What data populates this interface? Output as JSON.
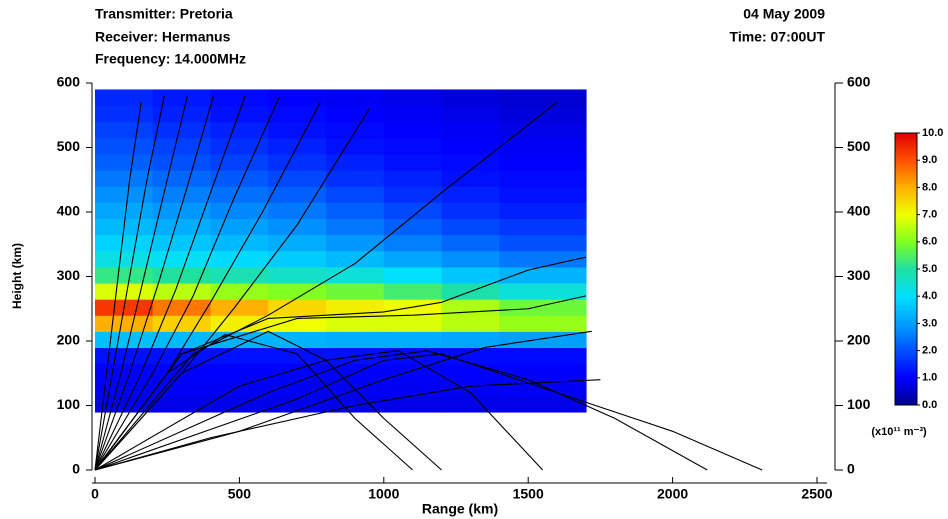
{
  "header": {
    "transmitter": "Transmitter: Pretoria",
    "receiver": "Receiver: Hermanus",
    "frequency": "Frequency: 14.000MHz",
    "date": "04 May 2009",
    "time": "Time: 07:00UT"
  },
  "chart_data": {
    "type": "heatmap",
    "xlabel": "Range (km)",
    "ylabel": "Height (km)",
    "xlim": [
      0,
      2500
    ],
    "xticks": [
      0,
      500,
      1000,
      1500,
      2000,
      2500
    ],
    "ylim": [
      0,
      600
    ],
    "yticks": [
      0,
      100,
      200,
      300,
      400,
      500,
      600
    ],
    "y2lim": [
      0,
      600
    ],
    "y2ticks": [
      0,
      100,
      200,
      300,
      400,
      500,
      600
    ],
    "xedges": [
      0,
      200,
      400,
      600,
      800,
      1000,
      1200,
      1400,
      1700
    ],
    "yedges": [
      90,
      115,
      140,
      165,
      190,
      215,
      240,
      265,
      290,
      315,
      340,
      365,
      390,
      415,
      440,
      465,
      490,
      515,
      540,
      565,
      590
    ],
    "values": [
      [
        0.8,
        0.8,
        0.8,
        0.8,
        0.8,
        0.8,
        0.8,
        0.8
      ],
      [
        0.9,
        0.9,
        0.9,
        0.9,
        0.9,
        0.9,
        0.9,
        0.9
      ],
      [
        1.0,
        1.0,
        1.0,
        1.0,
        1.0,
        1.0,
        1.0,
        1.0
      ],
      [
        1.2,
        1.2,
        1.2,
        1.2,
        1.2,
        1.1,
        1.1,
        1.1
      ],
      [
        3.5,
        3.4,
        3.3,
        3.3,
        3.2,
        3.2,
        3.1,
        3.0
      ],
      [
        8.0,
        7.6,
        7.2,
        7.0,
        6.8,
        6.8,
        6.5,
        6.2
      ],
      [
        9.3,
        8.6,
        8.0,
        7.5,
        7.2,
        7.0,
        6.4,
        5.8
      ],
      [
        6.8,
        6.5,
        6.2,
        6.0,
        5.8,
        5.4,
        4.9,
        4.4
      ],
      [
        5.2,
        5.0,
        4.8,
        4.6,
        4.4,
        4.0,
        3.6,
        3.3
      ],
      [
        4.3,
        4.1,
        3.9,
        3.7,
        3.4,
        3.1,
        2.8,
        2.5
      ],
      [
        3.8,
        3.6,
        3.4,
        3.2,
        2.9,
        2.6,
        2.3,
        2.0
      ],
      [
        3.4,
        3.2,
        3.0,
        2.8,
        2.5,
        2.2,
        1.9,
        1.7
      ],
      [
        3.1,
        2.9,
        2.7,
        2.5,
        2.2,
        1.9,
        1.6,
        1.4
      ],
      [
        2.8,
        2.6,
        2.4,
        2.2,
        1.9,
        1.6,
        1.4,
        1.2
      ],
      [
        2.5,
        2.3,
        2.1,
        1.9,
        1.6,
        1.4,
        1.2,
        1.1
      ],
      [
        2.2,
        2.0,
        1.8,
        1.6,
        1.4,
        1.2,
        1.1,
        1.0
      ],
      [
        2.0,
        1.8,
        1.6,
        1.4,
        1.2,
        1.1,
        1.0,
        0.9
      ],
      [
        1.8,
        1.6,
        1.4,
        1.2,
        1.1,
        1.0,
        0.9,
        0.8
      ],
      [
        1.6,
        1.4,
        1.2,
        1.1,
        1.0,
        0.9,
        0.8,
        0.7
      ],
      [
        1.5,
        1.3,
        1.1,
        1.0,
        0.9,
        0.8,
        0.7,
        0.6
      ]
    ],
    "clim": [
      0,
      10
    ],
    "colormap": [
      "#00008f",
      "#0000ff",
      "#0050ff",
      "#00a0ff",
      "#00e0ff",
      "#20e0a0",
      "#80ff20",
      "#f0ff00",
      "#ffb000",
      "#ff5000",
      "#e00000"
    ],
    "cticks": [
      {
        "value": 0,
        "label": "0.0"
      },
      {
        "value": 1,
        "label": "1.0"
      },
      {
        "value": 2,
        "label": "2.0"
      },
      {
        "value": 3,
        "label": "3.0"
      },
      {
        "value": 4,
        "label": "4.0"
      },
      {
        "value": 5,
        "label": "5.0"
      },
      {
        "value": 6,
        "label": "6.0"
      },
      {
        "value": 7,
        "label": "7.0"
      },
      {
        "value": 8,
        "label": "8.0"
      },
      {
        "value": 9,
        "label": "9.0"
      },
      {
        "value": 10,
        "label": "10.0"
      }
    ],
    "clabel": "(x10¹¹ m⁻³)",
    "ray_color": "#000000",
    "rays": [
      {
        "x": [
          0,
          40,
          80,
          120,
          160
        ],
        "y": [
          0,
          150,
          300,
          450,
          570
        ]
      },
      {
        "x": [
          0,
          60,
          120,
          180,
          240
        ],
        "y": [
          0,
          150,
          300,
          450,
          580
        ]
      },
      {
        "x": [
          0,
          90,
          170,
          250,
          320
        ],
        "y": [
          0,
          150,
          300,
          450,
          580
        ]
      },
      {
        "x": [
          0,
          120,
          220,
          320,
          410
        ],
        "y": [
          0,
          150,
          290,
          440,
          580
        ]
      },
      {
        "x": [
          0,
          160,
          280,
          400,
          520
        ],
        "y": [
          0,
          150,
          280,
          430,
          580
        ]
      },
      {
        "x": [
          0,
          200,
          340,
          480,
          640
        ],
        "y": [
          0,
          150,
          270,
          420,
          580
        ]
      },
      {
        "x": [
          0,
          250,
          400,
          580,
          780
        ],
        "y": [
          0,
          150,
          260,
          400,
          570
        ]
      },
      {
        "x": [
          0,
          300,
          480,
          700,
          950
        ],
        "y": [
          0,
          150,
          250,
          380,
          560
        ]
      },
      {
        "x": [
          0,
          340,
          600,
          900,
          1200,
          1600
        ],
        "y": [
          0,
          180,
          240,
          320,
          430,
          570
        ]
      },
      {
        "x": [
          0,
          300,
          600,
          1000,
          1200,
          1500,
          1700
        ],
        "y": [
          0,
          180,
          235,
          245,
          260,
          310,
          330
        ]
      },
      {
        "x": [
          0,
          300,
          700,
          1100,
          1500,
          1700
        ],
        "y": [
          0,
          180,
          235,
          240,
          250,
          270
        ]
      },
      {
        "x": [
          0,
          250,
          450,
          700,
          900,
          1100
        ],
        "y": [
          0,
          150,
          210,
          180,
          80,
          0
        ]
      },
      {
        "x": [
          0,
          300,
          600,
          800,
          1000,
          1200
        ],
        "y": [
          0,
          150,
          215,
          170,
          80,
          0
        ]
      },
      {
        "x": [
          0,
          500,
          800,
          1050,
          1300,
          1550
        ],
        "y": [
          0,
          130,
          170,
          185,
          120,
          0
        ]
      },
      {
        "x": [
          0,
          600,
          900,
          1150,
          1500,
          1800,
          2120
        ],
        "y": [
          0,
          120,
          170,
          185,
          140,
          80,
          0
        ]
      },
      {
        "x": [
          0,
          700,
          1000,
          1200,
          1600,
          2000,
          2310
        ],
        "y": [
          0,
          110,
          170,
          180,
          120,
          60,
          0
        ]
      },
      {
        "x": [
          0,
          500,
          1000,
          1350,
          1720
        ],
        "y": [
          0,
          60,
          140,
          190,
          215
        ]
      },
      {
        "x": [
          0,
          400,
          900,
          1300,
          1750
        ],
        "y": [
          0,
          50,
          100,
          130,
          140
        ]
      }
    ]
  }
}
